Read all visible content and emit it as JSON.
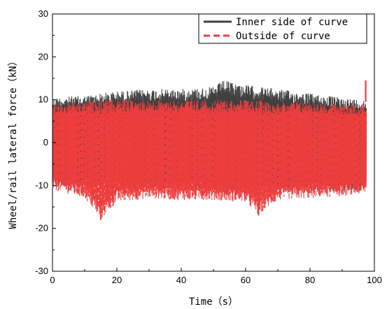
{
  "chart_data": {
    "type": "line",
    "title": "",
    "xlabel": "Time（s）",
    "ylabel": "Wheel/rail lateral force（kN）",
    "xlim": [
      0,
      100
    ],
    "ylim": [
      -30,
      30
    ],
    "x_ticks": [
      "0",
      "20",
      "40",
      "60",
      "80",
      "100"
    ],
    "y_ticks": [
      "-30",
      "-20",
      "-10",
      "0",
      "10",
      "20",
      "30"
    ],
    "grid": false,
    "legend_position": "top-right",
    "series": [
      {
        "name": "Inner side of curve",
        "color": "#404040",
        "line_style": "solid",
        "x_range": [
          0,
          97.5
        ],
        "envelope": {
          "x": [
            0,
            10,
            20,
            30,
            40,
            50,
            53,
            60,
            70,
            80,
            90,
            97.5
          ],
          "upper": [
            10.5,
            11,
            12,
            12.5,
            12.5,
            13,
            14.5,
            13.5,
            12.5,
            11.5,
            10.5,
            10
          ],
          "lower": [
            -10,
            -10.5,
            -11,
            -11,
            -11,
            -11.5,
            -12,
            -12.5,
            -12,
            -11,
            -11.5,
            -11
          ]
        }
      },
      {
        "name": "Outside of curve",
        "color": "#ee3d3d",
        "line_style": "dashed",
        "x_range": [
          0,
          97.5
        ],
        "envelope": {
          "x": [
            0,
            10,
            15,
            20,
            30,
            40,
            50,
            60,
            64,
            70,
            80,
            90,
            97.5
          ],
          "upper": [
            9,
            9.5,
            10,
            10,
            10,
            10,
            10,
            10,
            10,
            9.5,
            9.5,
            9,
            9
          ],
          "lower": [
            -11,
            -13,
            -18,
            -14,
            -13,
            -13.5,
            -13.5,
            -14,
            -17,
            -13.5,
            -13,
            -12.5,
            -12
          ]
        },
        "spikes": [
          {
            "x": 15,
            "y": -18
          },
          {
            "x": 64,
            "y": -17
          },
          {
            "x": 97.3,
            "y": 14.5
          }
        ]
      }
    ]
  }
}
